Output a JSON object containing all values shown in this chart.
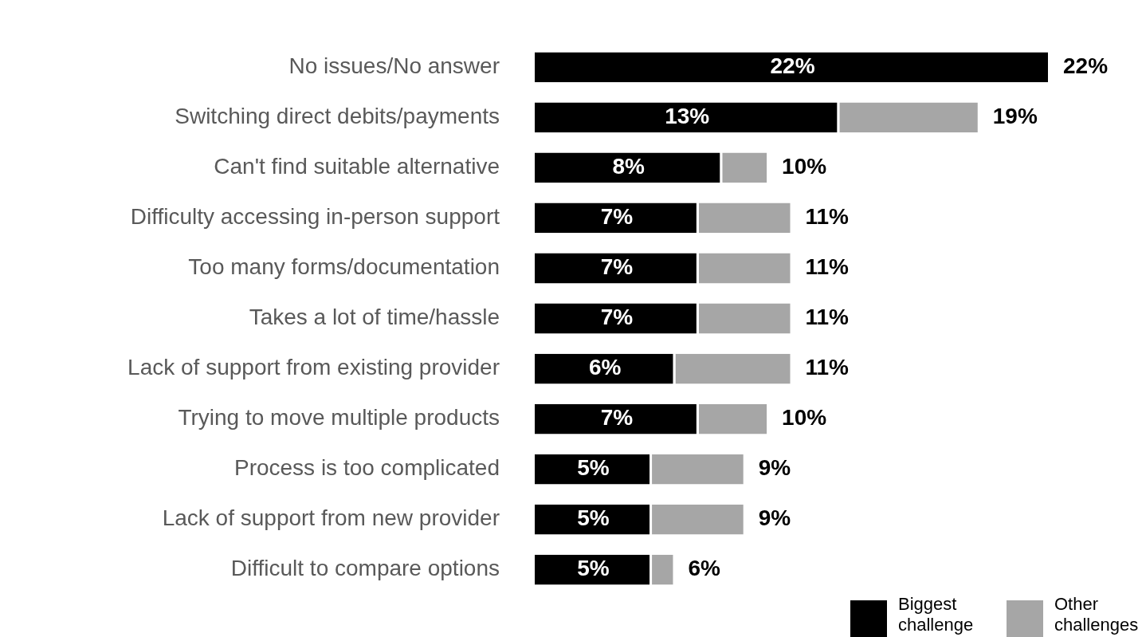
{
  "chart_data": {
    "type": "bar",
    "orientation": "horizontal",
    "stacked": true,
    "legend": "bottom right",
    "categories": [
      "No issues/No answer",
      "Switching direct debits/payments",
      "Can't find suitable alternative",
      "Difficulty accessing in-person support",
      "Too many forms/documentation",
      "Takes a lot of time/hassle",
      "Lack of support from existing provider",
      "Trying to move multiple products",
      "Process is too complicated",
      "Lack of support from new provider",
      "Difficult to compare options"
    ],
    "series": [
      {
        "name": "Biggest challenge",
        "color": "#000000",
        "values": [
          22,
          13,
          8,
          7,
          7,
          7,
          6,
          7,
          5,
          5,
          5
        ],
        "value_labels": [
          "22%",
          "13%",
          "8%",
          "7%",
          "7%",
          "7%",
          "6%",
          "7%",
          "5%",
          "5%",
          "5%"
        ]
      },
      {
        "name": "Other challenges",
        "color": "#a6a6a6",
        "values": [
          0,
          6,
          2,
          4,
          4,
          4,
          5,
          3,
          4,
          4,
          1
        ]
      }
    ],
    "totals": [
      "22%",
      "19%",
      "10%",
      "11%",
      "11%",
      "11%",
      "11%",
      "10%",
      "9%",
      "9%",
      "6%"
    ]
  }
}
